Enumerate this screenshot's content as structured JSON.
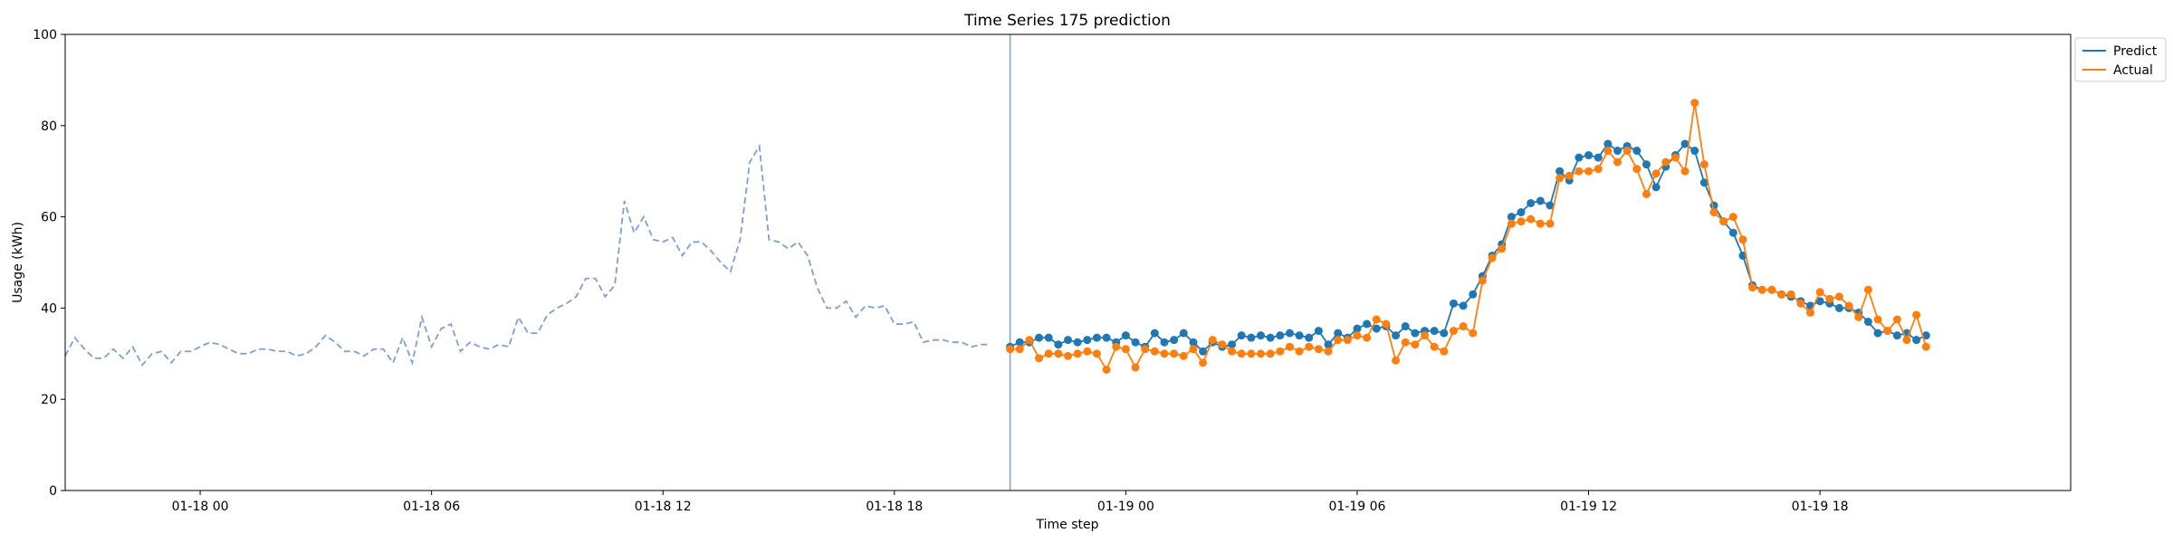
{
  "chart_data": {
    "type": "line",
    "title": "Time Series 175 prediction",
    "xlabel": "Time step",
    "ylabel": "Usage (kWh)",
    "ylim": [
      0,
      100
    ],
    "y_ticks": [
      0,
      20,
      40,
      60,
      80,
      100
    ],
    "x_ticks": [
      {
        "hour": 0,
        "label": "01-18 00"
      },
      {
        "hour": 6,
        "label": "01-18 06"
      },
      {
        "hour": 12,
        "label": "01-18 12"
      },
      {
        "hour": 18,
        "label": "01-18 18"
      },
      {
        "hour": 24,
        "label": "01-19 00"
      },
      {
        "hour": 30,
        "label": "01-19 06"
      },
      {
        "hour": 36,
        "label": "01-19 12"
      },
      {
        "hour": 42,
        "label": "01-19 18"
      }
    ],
    "time_axis": {
      "x_start": "01-17 20:30",
      "step_minutes": 15
    },
    "forecast_start": "01-18 21:00",
    "legend": {
      "position": "outside-top-right",
      "items": [
        "Predict",
        "Actual"
      ]
    },
    "colors": {
      "predict": "#1f77b4",
      "actual": "#ff7f0e",
      "history": "#7f9fcf",
      "divider": "#7f9fcf"
    },
    "history": [
      29.5,
      33.5,
      31.0,
      29.0,
      29.0,
      31.0,
      29.0,
      31.5,
      27.5,
      30.0,
      30.5,
      28.0,
      30.5,
      30.5,
      31.5,
      32.5,
      32.0,
      31.0,
      30.0,
      30.0,
      31.0,
      31.0,
      30.5,
      30.5,
      29.5,
      30.0,
      31.5,
      34.0,
      32.5,
      30.5,
      30.5,
      29.5,
      31.0,
      31.0,
      28.0,
      33.5,
      28.0,
      38.0,
      31.5,
      35.5,
      36.5,
      30.5,
      32.5,
      31.5,
      31.0,
      32.0,
      31.5,
      38.0,
      34.5,
      34.5,
      38.5,
      40.0,
      41.0,
      42.5,
      46.5,
      46.5,
      42.5,
      45.0,
      63.5,
      56.5,
      60.0,
      55.0,
      54.5,
      55.5,
      51.5,
      54.5,
      54.5,
      52.5,
      50.0,
      48.0,
      55.0,
      72.0,
      75.5,
      55.0,
      54.5,
      53.0,
      54.5,
      51.5,
      44.5,
      40.0,
      40.0,
      41.5,
      38.0,
      40.5,
      40.0,
      40.5,
      36.5,
      36.5,
      37.0,
      32.5,
      33.0,
      33.0,
      32.5,
      32.5,
      31.5,
      32.0,
      32.0
    ],
    "series": [
      {
        "name": "Predict",
        "values": [
          31.5,
          32.5,
          32.5,
          33.5,
          33.5,
          32.0,
          33.0,
          32.5,
          33.0,
          33.5,
          33.5,
          32.5,
          34.0,
          32.5,
          31.5,
          34.5,
          32.5,
          33.0,
          34.5,
          32.5,
          30.5,
          32.5,
          31.5,
          32.0,
          34.0,
          33.5,
          34.0,
          33.5,
          34.0,
          34.5,
          34.0,
          33.5,
          35.0,
          32.0,
          34.5,
          33.5,
          35.5,
          36.5,
          35.5,
          36.0,
          34.0,
          36.0,
          34.5,
          35.0,
          35.0,
          34.5,
          41.0,
          40.5,
          43.0,
          47.0,
          51.5,
          54.0,
          60.0,
          61.0,
          63.0,
          63.5,
          62.5,
          70.0,
          68.0,
          73.0,
          73.5,
          73.0,
          76.0,
          74.5,
          75.5,
          74.5,
          71.5,
          66.5,
          71.0,
          73.5,
          76.0,
          74.5,
          67.5,
          62.5,
          59.0,
          56.5,
          51.5,
          45.0,
          44.0,
          44.0,
          43.0,
          42.5,
          41.5,
          40.5,
          41.5,
          41.0,
          40.0,
          40.0,
          39.0,
          37.0,
          34.5,
          35.0,
          34.0,
          34.5,
          33.0,
          34.0
        ]
      },
      {
        "name": "Actual",
        "values": [
          31.0,
          31.0,
          33.0,
          29.0,
          30.0,
          30.0,
          29.5,
          30.0,
          30.5,
          30.0,
          26.5,
          31.5,
          31.0,
          27.0,
          31.0,
          30.5,
          30.0,
          30.0,
          29.5,
          31.0,
          28.0,
          33.0,
          32.0,
          30.5,
          30.0,
          30.0,
          30.0,
          30.0,
          30.5,
          31.5,
          30.5,
          31.5,
          31.0,
          30.5,
          33.0,
          33.0,
          34.0,
          33.5,
          37.5,
          36.5,
          28.5,
          32.5,
          32.0,
          34.0,
          31.5,
          30.5,
          35.0,
          36.0,
          34.5,
          46.0,
          51.0,
          53.0,
          58.5,
          59.0,
          59.5,
          58.5,
          58.5,
          68.5,
          69.0,
          70.0,
          70.0,
          70.5,
          74.5,
          72.0,
          74.5,
          70.5,
          65.0,
          69.5,
          72.0,
          73.0,
          70.0,
          85.0,
          71.5,
          61.0,
          59.0,
          60.0,
          55.0,
          44.5,
          44.0,
          44.0,
          43.0,
          43.0,
          41.0,
          39.0,
          43.5,
          42.0,
          42.5,
          40.5,
          38.0,
          44.0,
          37.5,
          35.0,
          37.5,
          33.0,
          38.5,
          31.5
        ]
      }
    ]
  }
}
